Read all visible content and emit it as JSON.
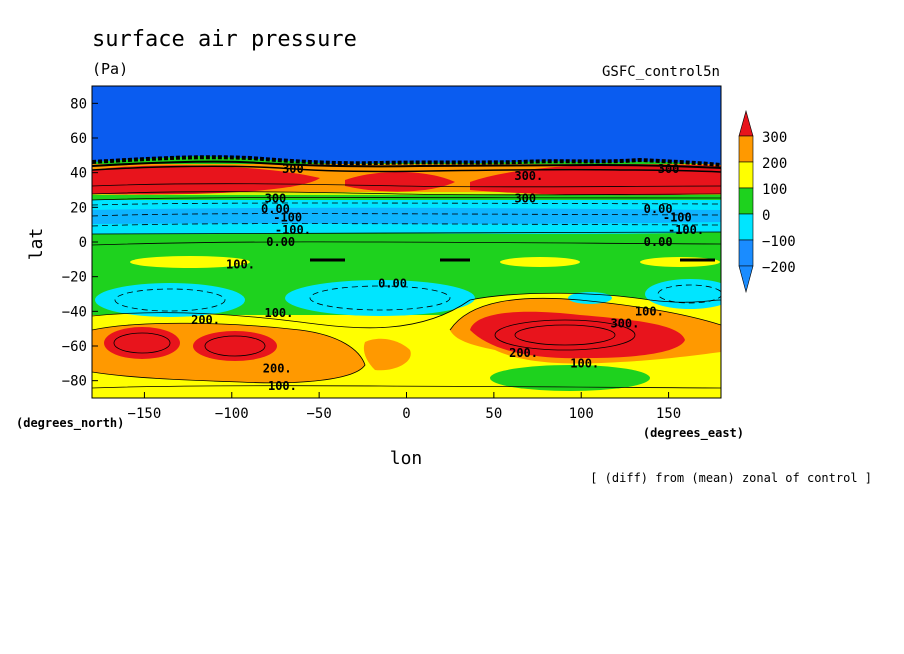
{
  "chart_data": {
    "type": "heatmap",
    "title": "surface air pressure",
    "units": "(Pa)",
    "dataset": "GSFC_control5n",
    "xlabel": "lon",
    "ylabel": "lat",
    "x_units": "(degrees_east)",
    "y_units": "(degrees_north)",
    "note": "[ (diff) from (mean) zonal of control ]",
    "xlim": [
      -180,
      180
    ],
    "ylim": [
      -90,
      90
    ],
    "x_ticks": [
      -150,
      -100,
      -50,
      0,
      50,
      100,
      150
    ],
    "y_ticks": [
      -80,
      -60,
      -40,
      -20,
      0,
      20,
      40,
      60,
      80
    ],
    "colorbar": {
      "levels": [
        -200,
        -100,
        0,
        100,
        200,
        300
      ],
      "labels": [
        "300",
        "200",
        "100",
        "0",
        "−100",
        "−200"
      ],
      "colors": {
        "below_-200": "#1a8cff",
        "-200_to_-100": "#1a8cff",
        "-100_to_0": "#00e5ff",
        "0_to_100": "#1ed21e",
        "100_to_200": "#ffff00",
        "200_to_300": "#ff9900",
        "above_300": "#e8141c",
        "polar_cap": "#0a5cf0"
      }
    },
    "bands": [
      {
        "lat_from": 45,
        "lat_to": 90,
        "value": -250
      },
      {
        "lat_from": 38,
        "lat_to": 45,
        "value": 200
      },
      {
        "lat_from": 26,
        "lat_to": 38,
        "value": 250
      },
      {
        "lat_from": 20,
        "lat_to": 26,
        "value": 50
      },
      {
        "lat_from": 5,
        "lat_to": 20,
        "value": -50
      },
      {
        "lat_from": -45,
        "lat_to": 5,
        "value": 50
      },
      {
        "lat_from": -75,
        "lat_to": -45,
        "value": 150
      },
      {
        "lat_from": -90,
        "lat_to": -75,
        "value": 150
      }
    ],
    "features": [
      {
        "kind": "high",
        "lon": -140,
        "lat": 33,
        "value": 350
      },
      {
        "kind": "high",
        "lon": 15,
        "lat": 33,
        "value": 320
      },
      {
        "kind": "high",
        "lon": 85,
        "lat": 32,
        "value": 320
      },
      {
        "kind": "high",
        "lon": -155,
        "lat": -55,
        "value": 340
      },
      {
        "kind": "high",
        "lon": -100,
        "lat": -57,
        "value": 340
      },
      {
        "kind": "high",
        "lon": 70,
        "lat": -52,
        "value": 360
      },
      {
        "kind": "low",
        "lon": -140,
        "lat": -27,
        "value": -120
      },
      {
        "kind": "low",
        "lon": -15,
        "lat": -30,
        "value": -110
      },
      {
        "kind": "low",
        "lon": 160,
        "lat": -27,
        "value": -110
      },
      {
        "kind": "low",
        "lon": -100,
        "lat": 12,
        "value": -130
      }
    ],
    "contour_labels": [
      {
        "text": "300",
        "lon": -65,
        "lat": 42
      },
      {
        "text": "300",
        "lon": 150,
        "lat": 42
      },
      {
        "text": "300",
        "lon": -75,
        "lat": 25
      },
      {
        "text": "300.",
        "lon": 70,
        "lat": 38
      },
      {
        "text": "300",
        "lon": 68,
        "lat": 25
      },
      {
        "text": "0.00",
        "lon": -75,
        "lat": 19
      },
      {
        "text": "-100",
        "lon": -68,
        "lat": 14
      },
      {
        "text": "-100.",
        "lon": -65,
        "lat": 7
      },
      {
        "text": "0.00",
        "lon": 144,
        "lat": 19
      },
      {
        "text": "-100",
        "lon": 155,
        "lat": 14
      },
      {
        "text": "-100.",
        "lon": 160,
        "lat": 7
      },
      {
        "text": "0.00",
        "lon": -72,
        "lat": 0
      },
      {
        "text": "0.00",
        "lon": 144,
        "lat": 0
      },
      {
        "text": "100.",
        "lon": -95,
        "lat": -13
      },
      {
        "text": "0.00",
        "lon": -8,
        "lat": -24
      },
      {
        "text": "100.",
        "lon": -73,
        "lat": -41
      },
      {
        "text": "200.",
        "lon": -115,
        "lat": -45
      },
      {
        "text": "100.",
        "lon": 139,
        "lat": -40
      },
      {
        "text": "300.",
        "lon": 125,
        "lat": -47
      },
      {
        "text": "200.",
        "lon": 67,
        "lat": -64
      },
      {
        "text": "100.",
        "lon": 102,
        "lat": -70
      },
      {
        "text": "200.",
        "lon": -74,
        "lat": -73
      },
      {
        "text": "100.",
        "lon": -71,
        "lat": -83
      }
    ]
  }
}
